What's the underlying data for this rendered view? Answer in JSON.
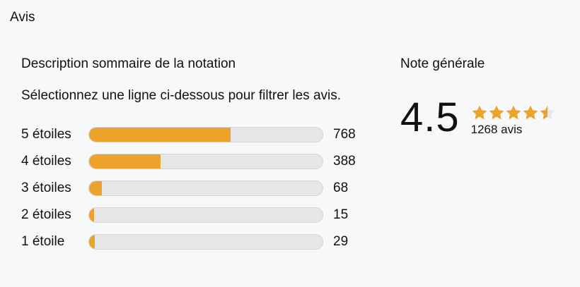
{
  "page": {
    "title": "Avis"
  },
  "summary": {
    "heading": "Description sommaire de la notation",
    "instruction": "Sélectionnez une ligne ci-dessous pour filtrer les avis."
  },
  "overall": {
    "heading": "Note générale",
    "rating_label": "4.5",
    "rating_value": 4.5,
    "max_stars": 5,
    "reviews_label": "1268 avis"
  },
  "chart_data": {
    "type": "bar",
    "orientation": "horizontal",
    "categories": [
      "5 étoiles",
      "4 étoiles",
      "3 étoiles",
      "2 étoiles",
      "1 étoile"
    ],
    "values": [
      768,
      388,
      68,
      15,
      29
    ],
    "total": 1268,
    "title": "Description sommaire de la notation",
    "xlabel": "",
    "ylabel": "",
    "xlim": [
      0,
      1268
    ]
  },
  "colors": {
    "accent_orange": "#EDA22C",
    "bar_track": "#E6E6E6",
    "star_empty": "#E8E8E8",
    "text": "#111111",
    "background": "#F7F8FA"
  }
}
